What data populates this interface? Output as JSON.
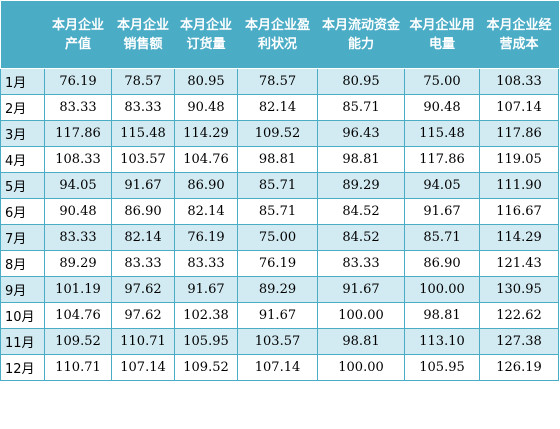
{
  "headers": [
    "",
    "本月企业产值",
    "本月企业销售额",
    "本月企业订货量",
    "本月企业盈利状况",
    "本月流动资金能力",
    "本月企业用电量",
    "本月企业经营成本"
  ],
  "rows": [
    {
      "month": "1月",
      "values": [
        "76.19",
        "78.57",
        "80.95",
        "78.57",
        "80.95",
        "75.00",
        "108.33"
      ]
    },
    {
      "month": "2月",
      "values": [
        "83.33",
        "83.33",
        "90.48",
        "82.14",
        "85.71",
        "90.48",
        "107.14"
      ]
    },
    {
      "month": "3月",
      "values": [
        "117.86",
        "115.48",
        "114.29",
        "109.52",
        "96.43",
        "115.48",
        "117.86"
      ]
    },
    {
      "month": "4月",
      "values": [
        "108.33",
        "103.57",
        "104.76",
        "98.81",
        "98.81",
        "117.86",
        "119.05"
      ]
    },
    {
      "month": "5月",
      "values": [
        "94.05",
        "91.67",
        "86.90",
        "85.71",
        "89.29",
        "94.05",
        "111.90"
      ]
    },
    {
      "month": "6月",
      "values": [
        "90.48",
        "86.90",
        "82.14",
        "85.71",
        "84.52",
        "91.67",
        "116.67"
      ]
    },
    {
      "month": "7月",
      "values": [
        "83.33",
        "82.14",
        "76.19",
        "75.00",
        "84.52",
        "85.71",
        "114.29"
      ]
    },
    {
      "month": "8月",
      "values": [
        "89.29",
        "83.33",
        "83.33",
        "76.19",
        "83.33",
        "86.90",
        "121.43"
      ]
    },
    {
      "month": "9月",
      "values": [
        "101.19",
        "97.62",
        "91.67",
        "89.29",
        "91.67",
        "100.00",
        "130.95"
      ]
    },
    {
      "month": "10月",
      "values": [
        "104.76",
        "97.62",
        "102.38",
        "91.67",
        "100.00",
        "98.81",
        "122.62"
      ]
    },
    {
      "month": "11月",
      "values": [
        "109.52",
        "110.71",
        "105.95",
        "103.57",
        "98.81",
        "113.10",
        "127.38"
      ]
    },
    {
      "month": "12月",
      "values": [
        "110.71",
        "107.14",
        "109.52",
        "107.14",
        "100.00",
        "105.95",
        "126.19"
      ]
    }
  ],
  "colors": {
    "header_bg": "#4bacc6",
    "band": "#d2eaf1",
    "border": "#4bacc6"
  }
}
